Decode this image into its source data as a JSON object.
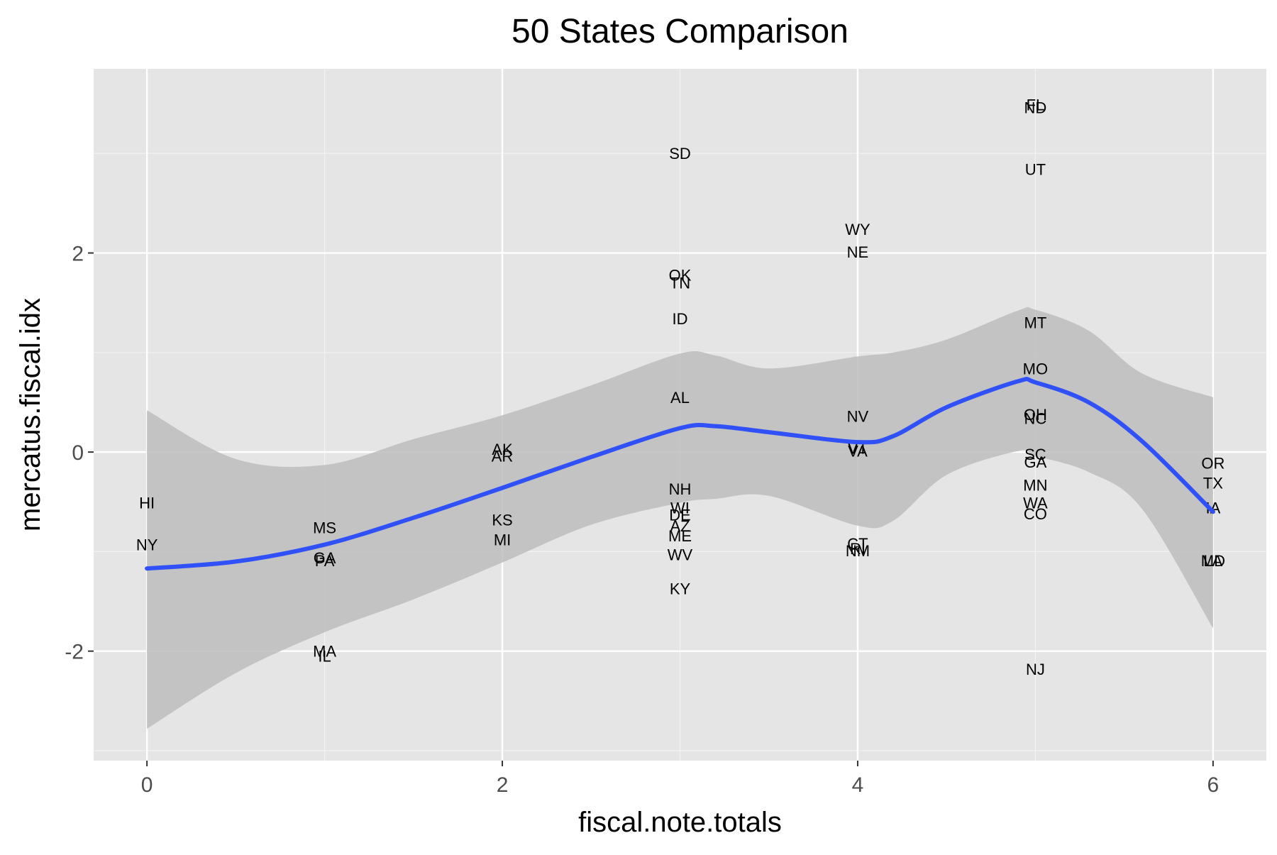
{
  "chart_data": {
    "type": "scatter",
    "title": "50 States Comparison",
    "xlabel": "fiscal.note.totals",
    "ylabel": "mercatus.fiscal.idx",
    "xlim": [
      -0.3,
      6.3
    ],
    "ylim": [
      -3.1,
      3.85
    ],
    "x_ticks": [
      0,
      2,
      4,
      6
    ],
    "x_tick_labels": [
      "0",
      "2",
      "4",
      "6"
    ],
    "y_ticks": [
      -2,
      0,
      2
    ],
    "y_tick_labels": [
      "-2",
      "0",
      "2"
    ],
    "grid": true,
    "legend": "none",
    "colors": {
      "panel_background": "#e5e5e5",
      "grid_major": "#ffffff",
      "smooth_line": "#3050f8",
      "confidence_band": "#bdbdbd"
    },
    "points": [
      {
        "label": "HI",
        "x": 0,
        "y": -0.51
      },
      {
        "label": "NY",
        "x": 0,
        "y": -0.93
      },
      {
        "label": "MS",
        "x": 1,
        "y": -0.76
      },
      {
        "label": "GA",
        "x": 1,
        "y": -1.06
      },
      {
        "label": "PA",
        "x": 1,
        "y": -1.09
      },
      {
        "label": "MA",
        "x": 1,
        "y": -2.0
      },
      {
        "label": "IL",
        "x": 1,
        "y": -2.05
      },
      {
        "label": "AK",
        "x": 2,
        "y": 0.03
      },
      {
        "label": "AR",
        "x": 2,
        "y": -0.04
      },
      {
        "label": "KS",
        "x": 2,
        "y": -0.68
      },
      {
        "label": "MI",
        "x": 2,
        "y": -0.88
      },
      {
        "label": "SD",
        "x": 3,
        "y": 3.0
      },
      {
        "label": "OK",
        "x": 3,
        "y": 1.78
      },
      {
        "label": "TN",
        "x": 3,
        "y": 1.7
      },
      {
        "label": "ID",
        "x": 3,
        "y": 1.34
      },
      {
        "label": "AL",
        "x": 3,
        "y": 0.55
      },
      {
        "label": "NH",
        "x": 3,
        "y": -0.37
      },
      {
        "label": "WI",
        "x": 3,
        "y": -0.56
      },
      {
        "label": "DE",
        "x": 3,
        "y": -0.63
      },
      {
        "label": "AZ",
        "x": 3,
        "y": -0.74
      },
      {
        "label": "ME",
        "x": 3,
        "y": -0.84
      },
      {
        "label": "WV",
        "x": 3,
        "y": -1.03
      },
      {
        "label": "KY",
        "x": 3,
        "y": -1.37
      },
      {
        "label": "WY",
        "x": 4,
        "y": 2.24
      },
      {
        "label": "NE",
        "x": 4,
        "y": 2.01
      },
      {
        "label": "NV",
        "x": 4,
        "y": 0.36
      },
      {
        "label": "VT",
        "x": 4,
        "y": 0.04
      },
      {
        "label": "VA",
        "x": 4,
        "y": 0.01
      },
      {
        "label": "CT",
        "x": 4,
        "y": -0.92
      },
      {
        "label": "RI",
        "x": 4,
        "y": -0.97
      },
      {
        "label": "NM",
        "x": 4,
        "y": -0.99
      },
      {
        "label": "FL",
        "x": 5,
        "y": 3.49
      },
      {
        "label": "ND",
        "x": 5,
        "y": 3.46
      },
      {
        "label": "UT",
        "x": 5,
        "y": 2.84
      },
      {
        "label": "MT",
        "x": 5,
        "y": 1.3
      },
      {
        "label": "MO",
        "x": 5,
        "y": 0.84
      },
      {
        "label": "OH",
        "x": 5,
        "y": 0.38
      },
      {
        "label": "NC",
        "x": 5,
        "y": 0.34
      },
      {
        "label": "SC",
        "x": 5,
        "y": -0.02
      },
      {
        "label": "GA",
        "x": 5,
        "y": -0.1
      },
      {
        "label": "MN",
        "x": 5,
        "y": -0.33
      },
      {
        "label": "WA",
        "x": 5,
        "y": -0.51
      },
      {
        "label": "CO",
        "x": 5,
        "y": -0.62
      },
      {
        "label": "NJ",
        "x": 5,
        "y": -2.18
      },
      {
        "label": "OR",
        "x": 6,
        "y": -0.11
      },
      {
        "label": "TX",
        "x": 6,
        "y": -0.31
      },
      {
        "label": "IA",
        "x": 6,
        "y": -0.56
      },
      {
        "label": "MD",
        "x": 6,
        "y": -1.09
      },
      {
        "label": "LA",
        "x": 6,
        "y": -1.09
      }
    ],
    "smooth": {
      "x": [
        0,
        0.5,
        1,
        1.5,
        2,
        2.5,
        3,
        3.2,
        3.5,
        4,
        4.2,
        4.5,
        4.9,
        5,
        5.3,
        5.6,
        6
      ],
      "y": [
        -1.17,
        -1.1,
        -0.93,
        -0.66,
        -0.36,
        -0.05,
        0.24,
        0.26,
        0.2,
        0.1,
        0.16,
        0.45,
        0.71,
        0.7,
        0.5,
        0.11,
        -0.6
      ],
      "lower": [
        -2.78,
        -2.22,
        -1.81,
        -1.48,
        -1.11,
        -0.73,
        -0.51,
        -0.47,
        -0.44,
        -0.74,
        -0.69,
        -0.23,
        0.01,
        -0.04,
        -0.2,
        -0.57,
        -1.77
      ],
      "upper": [
        0.42,
        -0.07,
        -0.13,
        0.13,
        0.37,
        0.67,
        0.99,
        0.97,
        0.84,
        0.96,
        1.0,
        1.13,
        1.42,
        1.43,
        1.22,
        0.79,
        0.55
      ]
    }
  }
}
